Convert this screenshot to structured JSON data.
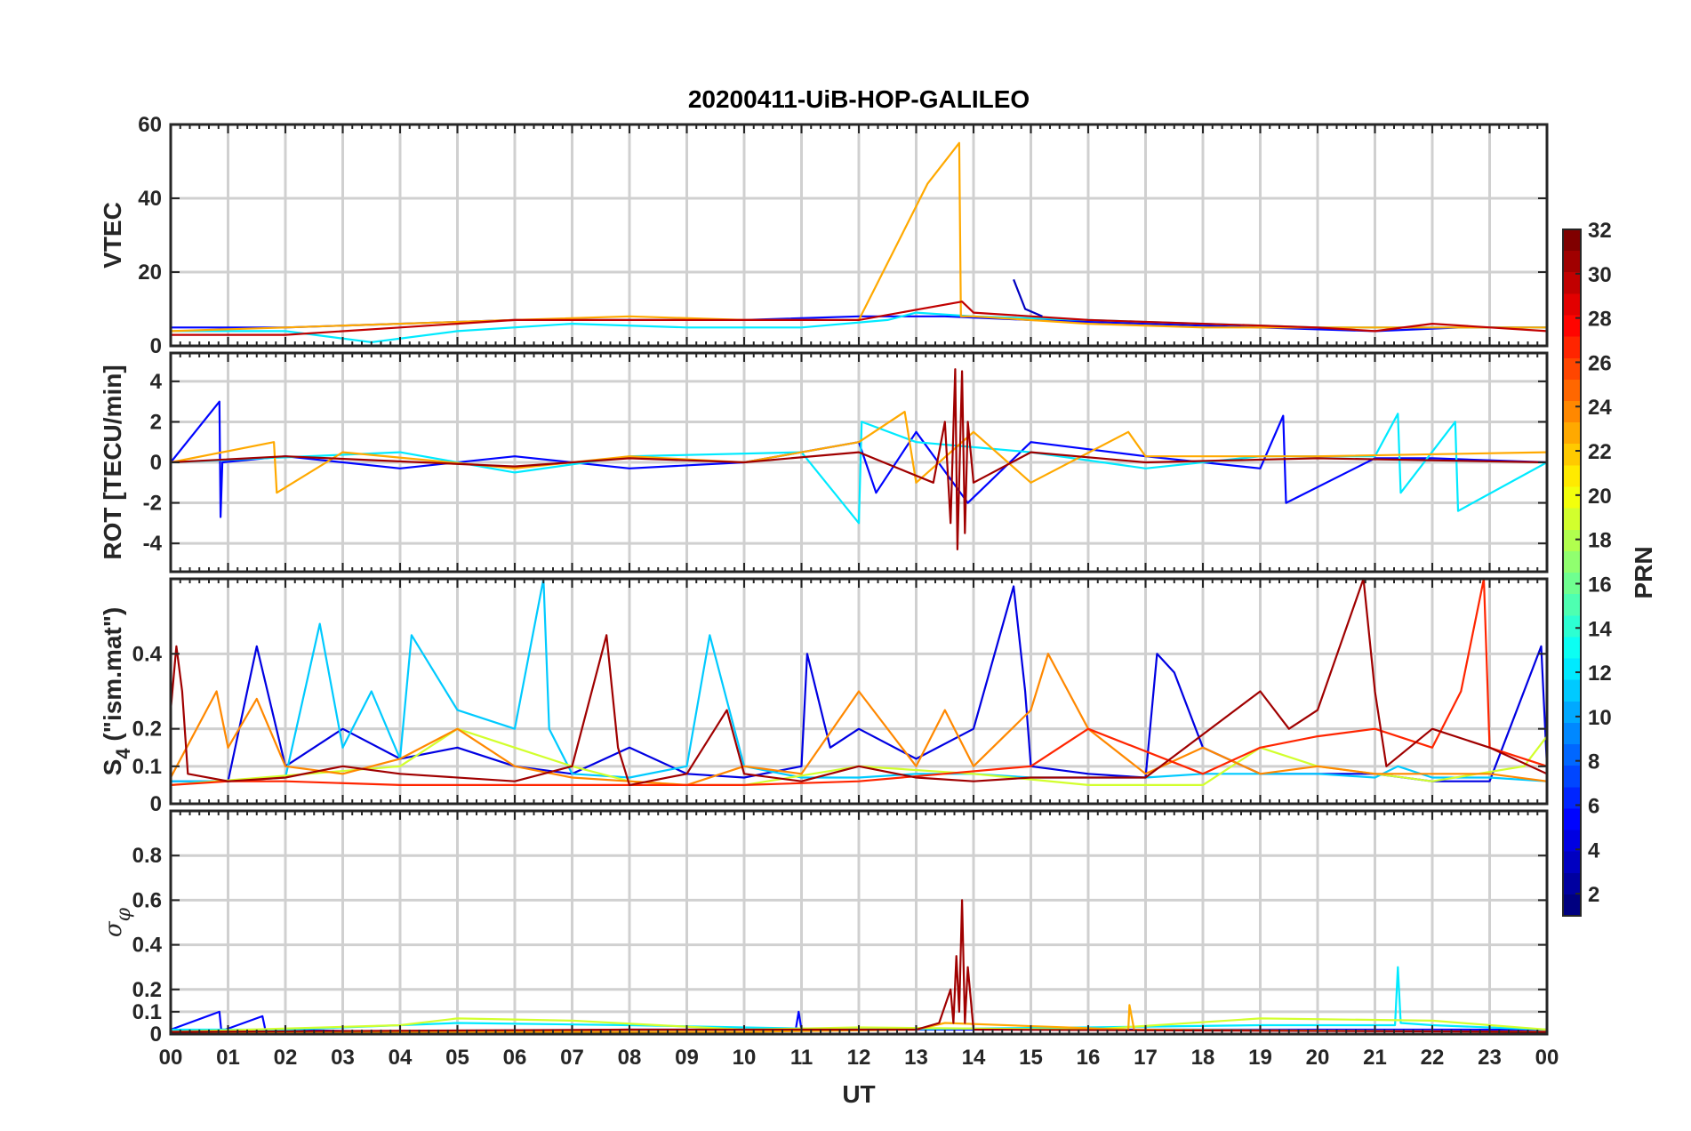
{
  "chart_data": {
    "type": "line",
    "title": "20200411-UiB-HOP-GALILEO",
    "xlabel": "UT",
    "x_ticks": [
      "00",
      "01",
      "02",
      "03",
      "04",
      "05",
      "06",
      "07",
      "08",
      "09",
      "10",
      "11",
      "12",
      "13",
      "14",
      "15",
      "16",
      "17",
      "18",
      "19",
      "20",
      "21",
      "22",
      "23",
      "00"
    ],
    "xlim": [
      0,
      24
    ],
    "grid": true,
    "colorbar": {
      "label": "PRN",
      "colormap": "jet",
      "range": [
        1,
        32
      ],
      "ticks": [
        "2",
        "4",
        "6",
        "8",
        "10",
        "12",
        "14",
        "16",
        "18",
        "20",
        "22",
        "24",
        "26",
        "28",
        "30",
        "32"
      ]
    },
    "panels": [
      {
        "ylabel": "VTEC",
        "ylim": [
          0,
          60
        ],
        "y_ticks": [
          "0",
          "20",
          "40",
          "60"
        ],
        "series": [
          {
            "prn": 5,
            "x": [
              0,
              2,
              4,
              6,
              8,
              10,
              12,
              13.5,
              15,
              17,
              19,
              21,
              22.5,
              24
            ],
            "y": [
              5,
              5,
              6,
              7,
              7,
              7,
              8,
              8,
              7,
              6,
              5,
              4,
              5,
              5
            ]
          },
          {
            "prn": 12,
            "x": [
              0,
              2,
              3.5,
              5,
              7,
              9,
              11,
              12.5,
              13,
              14,
              16,
              18,
              20,
              22,
              24
            ],
            "y": [
              4,
              4,
              1,
              4,
              6,
              5,
              5,
              7,
              9,
              8,
              7,
              6,
              5,
              5,
              5
            ]
          },
          {
            "prn": 23,
            "x": [
              0,
              2,
              4,
              6,
              8,
              10,
              12,
              13.2,
              13.75,
              13.78,
              14,
              16,
              18,
              20,
              22,
              24
            ],
            "y": [
              4,
              5,
              6,
              7,
              8,
              7,
              7,
              44,
              55,
              8,
              8,
              6,
              5,
              5,
              5,
              5
            ]
          },
          {
            "prn": 30,
            "x": [
              0,
              2,
              4,
              6,
              8,
              10,
              12,
              13.8,
              14,
              16,
              18,
              20,
              21,
              22,
              24
            ],
            "y": [
              3,
              3,
              5,
              7,
              7,
              7,
              7,
              12,
              9,
              7,
              6,
              5,
              4,
              6,
              4
            ]
          },
          {
            "prn": 3,
            "x": [
              14.7,
              14.9,
              15.2
            ],
            "y": [
              18,
              10,
              8
            ]
          }
        ]
      },
      {
        "ylabel": "ROT [TECU/min]",
        "ylim": [
          -5.4,
          5.4
        ],
        "y_ticks": [
          "-4",
          "-2",
          "0",
          "2",
          "4"
        ],
        "series": [
          {
            "prn": 5,
            "x": [
              0,
              0.85,
              0.87,
              0.9,
              2,
              4,
              6,
              8,
              10,
              11,
              12,
              12.3,
              13,
              13.9,
              15,
              17,
              19,
              19.4,
              19.45,
              21,
              22,
              24
            ],
            "y": [
              0,
              3,
              -2.7,
              0,
              0.3,
              -0.3,
              0.3,
              -0.3,
              0,
              0.5,
              1,
              -1.5,
              1.5,
              -2,
              1,
              0.3,
              -0.3,
              2.3,
              -2,
              0.2,
              0.2,
              0
            ]
          },
          {
            "prn": 12,
            "x": [
              0,
              4,
              6,
              8,
              11,
              12,
              12.05,
              13,
              15,
              17,
              19,
              21,
              21.4,
              21.45,
              22.4,
              22.45,
              24
            ],
            "y": [
              0,
              0.5,
              -0.5,
              0.3,
              0.5,
              -3,
              2,
              1,
              0.5,
              -0.3,
              0.3,
              0.3,
              2.4,
              -1.5,
              2,
              -2.4,
              0
            ]
          },
          {
            "prn": 23,
            "x": [
              0,
              1.8,
              1.85,
              3,
              6,
              8,
              10,
              12,
              12.8,
              13,
              14,
              15,
              16.7,
              17,
              20,
              24
            ],
            "y": [
              0,
              1,
              -1.5,
              0.5,
              -0.3,
              0.3,
              0,
              1,
              2.5,
              -1,
              1.5,
              -1,
              1.5,
              0.3,
              0.3,
              0.5
            ]
          },
          {
            "prn": 31,
            "x": [
              0,
              2,
              6,
              8,
              10,
              12,
              13.3,
              13.5,
              13.6,
              13.68,
              13.72,
              13.8,
              13.85,
              13.9,
              14,
              15,
              17,
              20,
              24
            ],
            "y": [
              0,
              0.3,
              -0.2,
              0.2,
              0,
              0.5,
              -1,
              2,
              -3,
              4.6,
              -4.3,
              4.5,
              -3.5,
              2,
              -1,
              0.5,
              0,
              0.2,
              0
            ]
          }
        ]
      },
      {
        "ylabel": "S4 (\"ism.mat\")",
        "ylabel_main": "S",
        "ylabel_sub": "4",
        "ylabel_rest": " (\"ism.mat\")",
        "ylim": [
          0,
          0.6
        ],
        "y_ticks": [
          "0",
          "0.1",
          "0.2",
          "0.4"
        ],
        "series": [
          {
            "prn": 4,
            "x": [
              0,
              1,
              1.5,
              2,
              3,
              4,
              5,
              6,
              7,
              8,
              9,
              10,
              11,
              11.1,
              11.5,
              12,
              13,
              14,
              14.7,
              14.9,
              15,
              16,
              17,
              17.2,
              17.5,
              18,
              19,
              20,
              21,
              22,
              23,
              23.9,
              24
            ],
            "y": [
              0.06,
              0.06,
              0.42,
              0.1,
              0.2,
              0.12,
              0.15,
              0.1,
              0.08,
              0.15,
              0.08,
              0.07,
              0.1,
              0.4,
              0.15,
              0.2,
              0.12,
              0.2,
              0.58,
              0.3,
              0.1,
              0.08,
              0.07,
              0.4,
              0.35,
              0.15,
              0.08,
              0.08,
              0.08,
              0.06,
              0.06,
              0.42,
              0.1
            ]
          },
          {
            "prn": 11,
            "x": [
              0,
              1,
              2,
              2.6,
              3,
              3.5,
              4,
              4.2,
              5,
              6,
              6.5,
              6.6,
              7,
              8,
              9,
              9.4,
              10,
              11,
              12,
              13,
              14,
              15,
              16,
              17,
              18,
              19,
              20,
              21,
              21.4,
              22,
              23,
              24
            ],
            "y": [
              0.06,
              0.06,
              0.07,
              0.48,
              0.15,
              0.3,
              0.12,
              0.45,
              0.25,
              0.2,
              0.6,
              0.2,
              0.08,
              0.07,
              0.1,
              0.45,
              0.1,
              0.07,
              0.07,
              0.08,
              0.08,
              0.07,
              0.07,
              0.07,
              0.08,
              0.08,
              0.08,
              0.07,
              0.1,
              0.07,
              0.07,
              0.06
            ]
          },
          {
            "prn": 19,
            "x": [
              0,
              4,
              5,
              6,
              7,
              8,
              9,
              10,
              12,
              14,
              16,
              18,
              19,
              20,
              22,
              23.6,
              24
            ],
            "y": [
              0.05,
              0.1,
              0.2,
              0.15,
              0.1,
              0.06,
              0.05,
              0.05,
              0.1,
              0.08,
              0.05,
              0.05,
              0.15,
              0.1,
              0.06,
              0.1,
              0.18
            ]
          },
          {
            "prn": 24,
            "x": [
              0,
              0.8,
              1,
              1.5,
              2,
              3,
              4,
              5,
              6,
              7,
              8,
              9,
              10,
              11,
              12,
              13,
              13.5,
              14,
              15,
              15.3,
              16,
              17,
              18,
              19,
              20,
              21,
              22,
              23,
              24
            ],
            "y": [
              0.07,
              0.3,
              0.15,
              0.28,
              0.1,
              0.08,
              0.12,
              0.2,
              0.1,
              0.07,
              0.06,
              0.05,
              0.1,
              0.08,
              0.3,
              0.1,
              0.25,
              0.1,
              0.25,
              0.4,
              0.2,
              0.08,
              0.15,
              0.08,
              0.1,
              0.08,
              0.08,
              0.08,
              0.06
            ]
          },
          {
            "prn": 27,
            "x": [
              0,
              1,
              2,
              4,
              6,
              8,
              10,
              12,
              15,
              16,
              18,
              19,
              20,
              21,
              22,
              22.5,
              22.9,
              23,
              24
            ],
            "y": [
              0.05,
              0.06,
              0.06,
              0.05,
              0.05,
              0.05,
              0.05,
              0.06,
              0.1,
              0.2,
              0.08,
              0.15,
              0.18,
              0.2,
              0.15,
              0.3,
              0.6,
              0.15,
              0.1
            ]
          },
          {
            "prn": 31,
            "x": [
              0,
              0.1,
              0.2,
              0.3,
              1,
              2,
              3,
              4,
              6,
              7,
              7.6,
              7.8,
              8,
              9,
              9.7,
              10,
              11,
              12,
              13,
              14,
              15,
              17,
              19,
              19.5,
              20,
              20.8,
              21,
              21.2,
              22,
              23,
              24
            ],
            "y": [
              0.25,
              0.42,
              0.3,
              0.08,
              0.06,
              0.07,
              0.1,
              0.08,
              0.06,
              0.1,
              0.45,
              0.15,
              0.05,
              0.08,
              0.25,
              0.08,
              0.06,
              0.1,
              0.07,
              0.06,
              0.07,
              0.07,
              0.3,
              0.2,
              0.25,
              0.6,
              0.3,
              0.1,
              0.2,
              0.15,
              0.08
            ]
          }
        ]
      },
      {
        "ylabel": "σ φ",
        "ylabel_main": "σ",
        "ylabel_sub": "φ",
        "ylim": [
          0,
          1
        ],
        "y_ticks": [
          "0",
          "0.1",
          "0.2",
          "0.4",
          "0.6",
          "0.8"
        ],
        "series": [
          {
            "prn": 5,
            "x": [
              0,
              0.85,
              0.88,
              0.95,
              1.6,
              1.65,
              1.7,
              4,
              8,
              10.9,
              10.95,
              11,
              14,
              18,
              24
            ],
            "y": [
              0.02,
              0.1,
              0.02,
              0.02,
              0.08,
              0.02,
              0.02,
              0.01,
              0.02,
              0.02,
              0.1,
              0.02,
              0.02,
              0.02,
              0.02
            ]
          },
          {
            "prn": 12,
            "x": [
              0,
              2,
              3,
              5,
              8,
              12,
              16,
              19,
              21.35,
              21.4,
              21.45,
              22,
              24
            ],
            "y": [
              0.02,
              0.02,
              0.03,
              0.05,
              0.04,
              0.02,
              0.03,
              0.04,
              0.04,
              0.3,
              0.05,
              0.04,
              0.02
            ]
          },
          {
            "prn": 19,
            "x": [
              0,
              4,
              5,
              7,
              8.5,
              10,
              12,
              16,
              19,
              22,
              24
            ],
            "y": [
              0.01,
              0.04,
              0.07,
              0.06,
              0.04,
              0.02,
              0.03,
              0.02,
              0.07,
              0.06,
              0.02
            ]
          },
          {
            "prn": 23,
            "x": [
              0,
              6,
              10,
              13,
              13.5,
              16.7,
              16.72,
              16.8,
              24
            ],
            "y": [
              0.01,
              0.01,
              0.01,
              0.02,
              0.05,
              0.02,
              0.13,
              0.02,
              0.01
            ]
          },
          {
            "prn": 31,
            "x": [
              0,
              8,
              13,
              13.4,
              13.6,
              13.65,
              13.7,
              13.75,
              13.8,
              13.85,
              13.9,
              14,
              24
            ],
            "y": [
              0.01,
              0.02,
              0.02,
              0.05,
              0.2,
              0.05,
              0.35,
              0.1,
              0.6,
              0.05,
              0.3,
              0.02,
              0.01
            ]
          }
        ]
      }
    ]
  }
}
